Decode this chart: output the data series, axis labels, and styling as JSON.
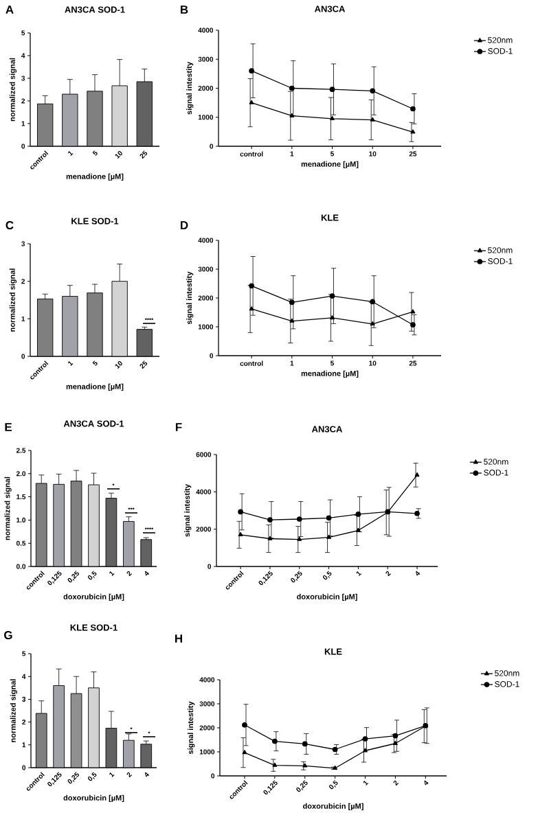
{
  "chart_data": [
    {
      "type": "bar",
      "title": "AN3CA SOD-1",
      "xlabel": "menadione [µM]",
      "ylabel": "normalized signal",
      "categories": [
        "control",
        "1",
        "5",
        "10",
        "25"
      ],
      "values": [
        1.87,
        2.3,
        2.43,
        2.67,
        2.85
      ],
      "colors": [
        "#7f7f7f",
        "#a1a1a9",
        "#808080",
        "#d3d3d3",
        "#626262"
      ],
      "errors": [
        [
          1.87,
          2.23
        ],
        [
          2.3,
          2.95
        ],
        [
          2.43,
          3.16
        ],
        [
          2.67,
          3.83
        ],
        [
          2.85,
          3.41
        ]
      ],
      "ylim": [
        0,
        5
      ],
      "yticks": [
        0,
        1,
        2,
        3,
        4,
        5
      ],
      "annotations": [
        "A"
      ]
    },
    {
      "type": "line",
      "title": "AN3CA",
      "xlabel": "menadione [µM]",
      "ylabel": "signal intestity",
      "categories": [
        "control",
        "1",
        "5",
        "10",
        "25"
      ],
      "series": [
        {
          "name": "520nm",
          "color": "#000000",
          "marker": "triangle",
          "values": [
            1500,
            1050,
            950,
            910,
            490
          ],
          "errors": [
            830,
            840,
            730,
            690,
            330
          ]
        },
        {
          "name": "SOD-1",
          "color": "#000000",
          "marker": "circle",
          "values": [
            2600,
            2000,
            1960,
            1910,
            1290
          ],
          "errors": [
            930,
            950,
            880,
            830,
            520
          ]
        }
      ],
      "ylim": [
        0,
        4000
      ],
      "yticks": [
        0,
        1000,
        2000,
        3000,
        4000
      ],
      "legend": "top right",
      "annotations": [
        "B"
      ]
    },
    {
      "type": "bar",
      "title": "KLE SOD-1",
      "xlabel": "menadione [µM]",
      "ylabel": "normalized signal",
      "categories": [
        "control",
        "1",
        "5",
        "10",
        "25"
      ],
      "values": [
        1.53,
        1.6,
        1.69,
        2.0,
        0.72
      ],
      "colors": [
        "#7f7f7f",
        "#a1a1a9",
        "#808080",
        "#d3d3d3",
        "#626262"
      ],
      "errors": [
        [
          1.53,
          1.66
        ],
        [
          1.6,
          1.89
        ],
        [
          1.69,
          1.92
        ],
        [
          2.0,
          2.46
        ],
        [
          0.72,
          0.78
        ]
      ],
      "ylim": [
        0,
        3
      ],
      "yticks": [
        0,
        1,
        2,
        3
      ],
      "annotations": [
        "C",
        "****"
      ]
    },
    {
      "type": "line",
      "title": "KLE",
      "xlabel": "menadione [µM]",
      "ylabel": "signal intestity",
      "categories": [
        "control",
        "1",
        "5",
        "10",
        "25"
      ],
      "series": [
        {
          "name": "520nm",
          "color": "#000000",
          "marker": "triangle",
          "values": [
            1620,
            1200,
            1310,
            1100,
            1520
          ],
          "errors": [
            820,
            760,
            810,
            750,
            670
          ]
        },
        {
          "name": "SOD-1",
          "color": "#000000",
          "marker": "circle",
          "values": [
            2420,
            1850,
            2070,
            1870,
            1070
          ],
          "errors": [
            1020,
            920,
            960,
            900,
            350
          ]
        }
      ],
      "ylim": [
        0,
        4000
      ],
      "yticks": [
        0,
        1000,
        2000,
        3000,
        4000
      ],
      "legend": "top right",
      "annotations": [
        "D"
      ]
    },
    {
      "type": "bar",
      "title": "AN3CA SOD-1",
      "xlabel": "doxorubicin [µM]",
      "ylabel": "normalized signal",
      "categories": [
        "control",
        "0,125",
        "0,25",
        "0,5",
        "1",
        "2",
        "4"
      ],
      "values": [
        1.79,
        1.77,
        1.84,
        1.76,
        1.47,
        0.97,
        0.58
      ],
      "colors": [
        "#7f7f7f",
        "#a1a1a9",
        "#808080",
        "#d3d3d3",
        "#626262",
        "#a1a1a9",
        "#626262"
      ],
      "errors": [
        [
          1.79,
          1.97
        ],
        [
          1.77,
          1.99
        ],
        [
          1.84,
          2.07
        ],
        [
          1.76,
          2.01
        ],
        [
          1.47,
          1.58
        ],
        [
          0.97,
          1.07
        ],
        [
          0.58,
          0.62
        ]
      ],
      "ylim": [
        0,
        2.5
      ],
      "yticks": [
        {
          "value": 0,
          "label": "0.0"
        },
        0.5,
        {
          "value": 1,
          "label": "1.0"
        },
        1.5,
        {
          "value": 2,
          "label": "2.0"
        },
        2.5
      ],
      "annotations": [
        "E",
        "*",
        "***",
        "****"
      ]
    },
    {
      "type": "line",
      "title": "AN3CA",
      "xlabel": "doxorubicin [µM]",
      "ylabel": "signal intestity",
      "categories": [
        "control",
        "0,125",
        "0,25",
        "0,5",
        "1",
        "2",
        "4"
      ],
      "series": [
        {
          "name": "520nm",
          "color": "#000000",
          "marker": "triangle",
          "values": [
            1700,
            1490,
            1450,
            1560,
            1930,
            2900,
            4900
          ],
          "errors": [
            720,
            740,
            700,
            810,
            810,
            1200,
            640
          ]
        },
        {
          "name": "SOD-1",
          "color": "#000000",
          "marker": "circle",
          "values": [
            2930,
            2500,
            2540,
            2600,
            2800,
            2930,
            2840
          ],
          "errors": [
            970,
            980,
            940,
            970,
            940,
            1310,
            260
          ]
        }
      ],
      "ylim": [
        0,
        6000
      ],
      "yticks": [
        0,
        2000,
        4000,
        6000
      ],
      "legend": "top right",
      "annotations": [
        "F"
      ]
    },
    {
      "type": "bar",
      "title": "KLE SOD-1",
      "xlabel": "doxorubicin [µM]",
      "ylabel": "normalized signal",
      "categories": [
        "control",
        "0,125",
        "0,25",
        "0,5",
        "1",
        "2",
        "4"
      ],
      "values": [
        2.38,
        3.6,
        3.25,
        3.5,
        1.73,
        1.2,
        1.03
      ],
      "colors": [
        "#7f7f7f",
        "#a1a1a9",
        "#909090",
        "#d3d3d3",
        "#626262",
        "#a1a1a9",
        "#626262"
      ],
      "errors": [
        [
          2.38,
          2.93
        ],
        [
          3.6,
          4.33
        ],
        [
          3.25,
          4.0
        ],
        [
          3.5,
          4.2
        ],
        [
          1.73,
          2.47
        ],
        [
          1.2,
          1.48
        ],
        [
          1.03,
          1.17
        ]
      ],
      "ylim": [
        0,
        5
      ],
      "yticks": [
        0,
        1,
        2,
        3,
        4,
        5
      ],
      "annotations": [
        "G",
        "*",
        "*"
      ]
    },
    {
      "type": "line",
      "title": "KLE",
      "xlabel": "doxorubicin [µM]",
      "ylabel": "signal intestity",
      "categories": [
        "control",
        "0,125",
        "0,25",
        "0,5",
        "1",
        "2",
        "4"
      ],
      "series": [
        {
          "name": "520nm",
          "color": "#000000",
          "marker": "triangle",
          "values": [
            970,
            440,
            420,
            320,
            1050,
            1350,
            2070
          ],
          "errors": [
            620,
            250,
            170,
            50,
            480,
            380,
            690
          ]
        },
        {
          "name": "SOD-1",
          "color": "#000000",
          "marker": "circle",
          "values": [
            2120,
            1440,
            1330,
            1100,
            1540,
            1670,
            2090
          ],
          "errors": [
            860,
            400,
            430,
            200,
            470,
            650,
            740
          ]
        }
      ],
      "ylim": [
        0,
        4000
      ],
      "yticks": [
        0,
        1000,
        2000,
        3000,
        4000
      ],
      "legend": "top right",
      "annotations": [
        "H"
      ]
    }
  ]
}
